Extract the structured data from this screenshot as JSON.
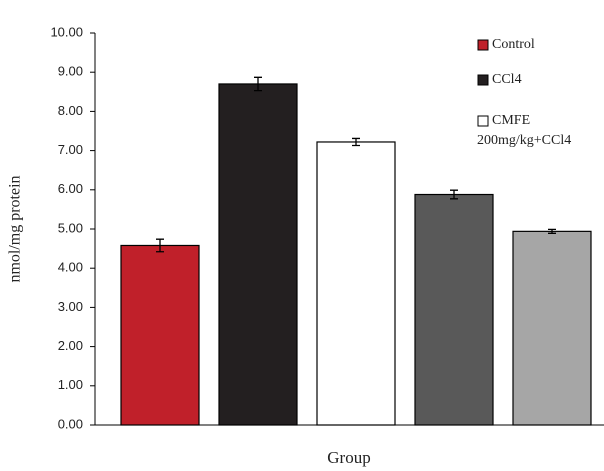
{
  "chart_data": {
    "type": "bar",
    "y_label": "nmol/mg protein",
    "x_label": "Group",
    "categories": [
      null,
      null,
      null,
      null,
      null
    ],
    "values": [
      4.58,
      8.7,
      7.22,
      5.88,
      4.94
    ],
    "errors": [
      0.16,
      0.17,
      0.09,
      0.11,
      0.05
    ],
    "colors": [
      "#c0202a",
      "#231f20",
      "#ffffff",
      "#595959",
      "#a6a6a6"
    ],
    "legend": [
      {
        "name": "Control",
        "color": "#c0202a"
      },
      {
        "name": "CCl4",
        "color": "#231f20"
      },
      {
        "name": "CMFE 200mg/kg+CCl4",
        "color": "#ffffff"
      }
    ],
    "ylim": [
      0,
      10
    ],
    "yticks": [
      {
        "value": 0,
        "label": "0.00"
      },
      {
        "value": 1,
        "label": "1.00"
      },
      {
        "value": 2,
        "label": "2.00"
      },
      {
        "value": 3,
        "label": "3.00"
      },
      {
        "value": 4,
        "label": "4.00"
      },
      {
        "value": 5,
        "label": "5.00"
      },
      {
        "value": 6,
        "label": "6.00"
      },
      {
        "value": 7,
        "label": "7.00"
      },
      {
        "value": 8,
        "label": "8.00"
      },
      {
        "value": 9,
        "label": "9.00"
      },
      {
        "value": 10,
        "label": "10.00"
      }
    ]
  }
}
